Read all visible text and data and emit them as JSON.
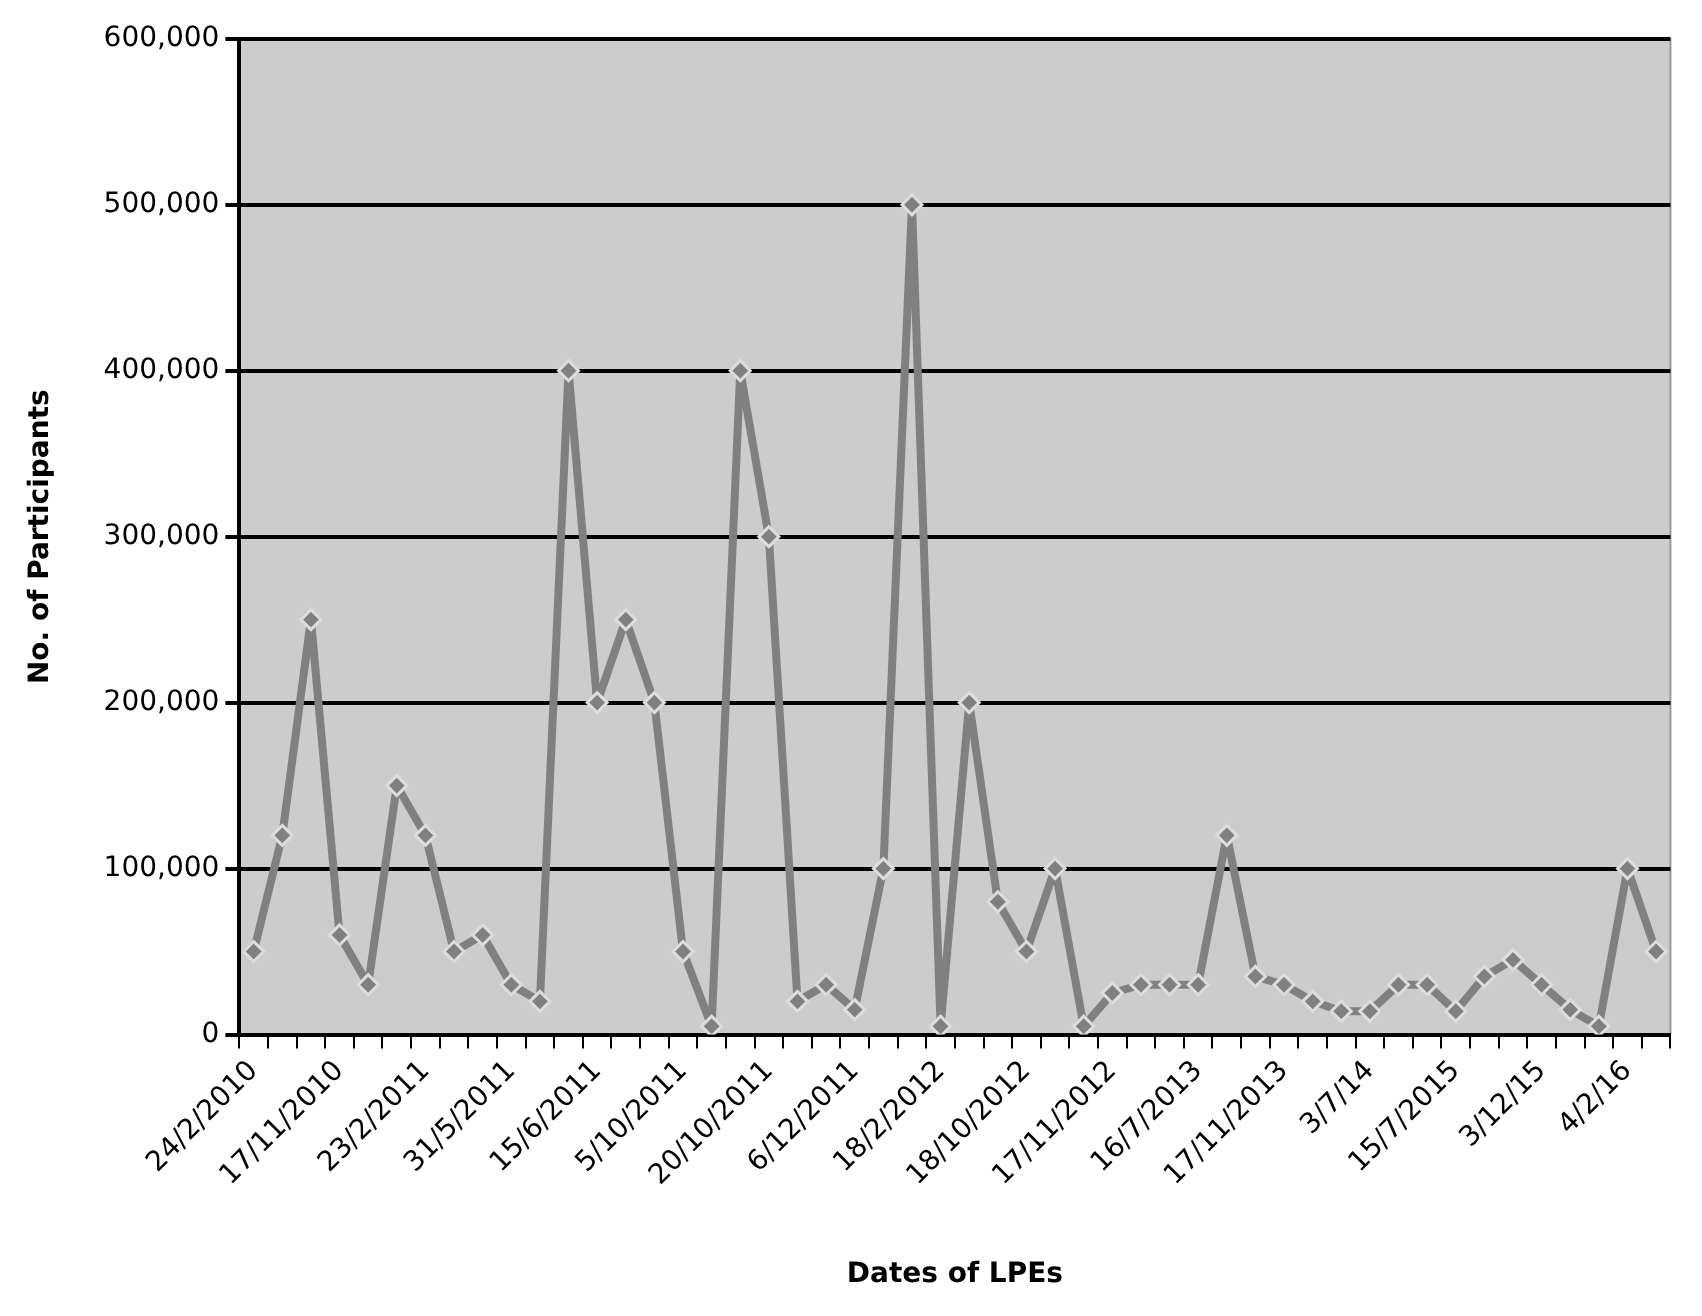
{
  "chart_data": {
    "type": "line",
    "xlabel": "Dates of LPEs",
    "ylabel": "No. of Participants",
    "categories": [
      "24/2/2010",
      null,
      null,
      "17/11/2010",
      null,
      null,
      "23/2/2011",
      null,
      null,
      "31/5/2011",
      null,
      null,
      "15/6/2011",
      null,
      null,
      "5/10/2011",
      null,
      null,
      "20/10/2011",
      null,
      null,
      "6/12/2011",
      null,
      null,
      "18/2/2012",
      null,
      null,
      "18/10/2012",
      null,
      null,
      "17/11/2012",
      null,
      null,
      "16/7/2013",
      null,
      null,
      "17/11/2013",
      null,
      null,
      "3/7/14",
      null,
      null,
      "15/7/2015",
      null,
      null,
      "3/12/15",
      null,
      null,
      "4/2/16",
      null
    ],
    "series": [
      {
        "color": "#808080",
        "values": [
          50000,
          120000,
          250000,
          60000,
          30000,
          150000,
          120000,
          50000,
          60000,
          30000,
          20000,
          400000,
          200000,
          250000,
          200000,
          50000,
          5000,
          400000,
          300000,
          20000,
          30000,
          15000,
          100000,
          500000,
          5000,
          200000,
          80000,
          50000,
          100000,
          5000,
          25000,
          30000,
          30000,
          30000,
          120000,
          35000,
          30000,
          20000,
          14000,
          14000,
          30000,
          30000,
          14000,
          35000,
          45000,
          30000,
          15000,
          5000,
          100000,
          50000
        ]
      }
    ],
    "ylim": [
      0,
      600000
    ],
    "yticks": [
      0,
      {
        "value": 100000,
        "label": "100,000"
      },
      {
        "value": 200000,
        "label": "200,000"
      },
      {
        "value": 300000,
        "label": "300,000"
      },
      {
        "value": 400000,
        "label": "400,000"
      },
      {
        "value": 500000,
        "label": "500,000"
      },
      {
        "value": 600000,
        "label": "600,000"
      }
    ],
    "grid": "y",
    "legend": false,
    "marker": "diamond",
    "line_style": "solid"
  }
}
